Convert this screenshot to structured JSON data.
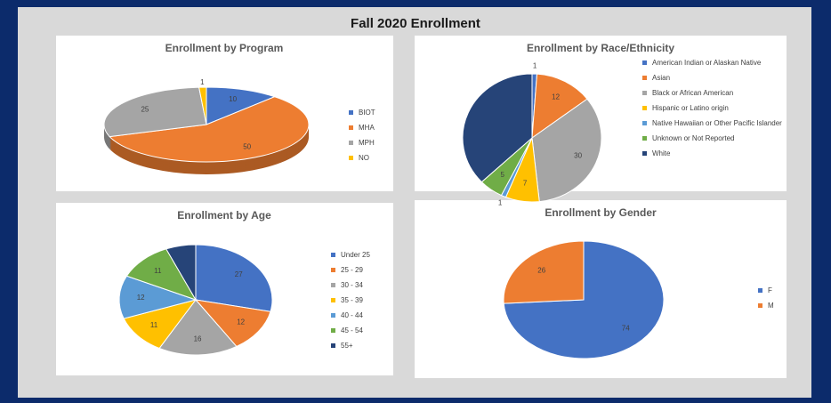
{
  "title": "Fall 2020 Enrollment",
  "chart_data": [
    {
      "type": "pie",
      "title": "Enrollment by Program",
      "three_d": true,
      "categories": [
        "BIOT",
        "MHA",
        "MPH",
        "NO"
      ],
      "values": [
        10,
        50,
        25,
        1
      ],
      "colors": [
        "#4472c4",
        "#ed7d31",
        "#a5a5a5",
        "#ffc000"
      ]
    },
    {
      "type": "pie",
      "title": "Enrollment by Race/Ethnicity",
      "categories": [
        "American Indian or Alaskan Native",
        "Asian",
        "Black or African American",
        "Hispanic or Latino origin",
        "Native Hawaiian or Other Pacific Islander",
        "Unknown or Not Reported",
        "White"
      ],
      "values": [
        1,
        12,
        30,
        7,
        1,
        5,
        33
      ],
      "value_labels": [
        "1",
        "12",
        "30",
        "7",
        "1",
        "5",
        null
      ],
      "colors": [
        "#4472c4",
        "#ed7d31",
        "#a5a5a5",
        "#ffc000",
        "#5b9bd5",
        "#70ad47",
        "#264478"
      ]
    },
    {
      "type": "pie",
      "title": "Enrollment by Age",
      "categories": [
        "Under 25",
        "25 - 29",
        "30 - 34",
        "35 - 39",
        "40 - 44",
        "45 - 54",
        "55+"
      ],
      "values": [
        27,
        12,
        16,
        11,
        12,
        11,
        6
      ],
      "value_labels": [
        "27",
        "12",
        "16",
        "11",
        "12",
        "11",
        null
      ],
      "colors": [
        "#4472c4",
        "#ed7d31",
        "#a5a5a5",
        "#ffc000",
        "#5b9bd5",
        "#70ad47",
        "#264478"
      ]
    },
    {
      "type": "pie",
      "title": "Enrollment by Gender",
      "categories": [
        "F",
        "M"
      ],
      "values": [
        74,
        26
      ],
      "colors": [
        "#4472c4",
        "#ed7d31"
      ]
    }
  ]
}
